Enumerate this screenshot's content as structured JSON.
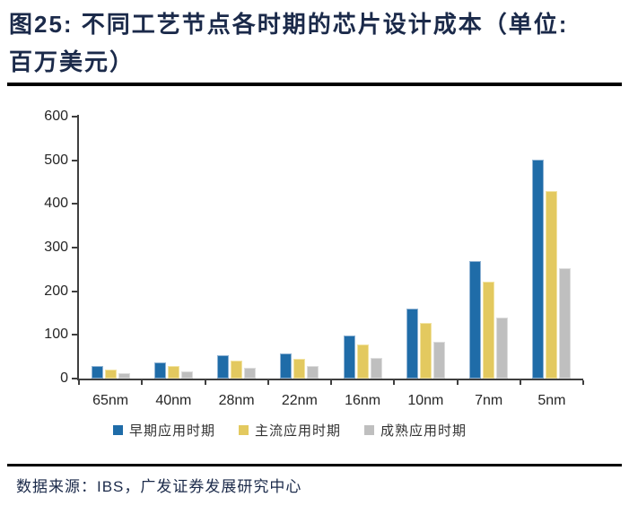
{
  "header": {
    "title": "图25:  不同工艺节点各时期的芯片设计成本（单位:\n百万美元）"
  },
  "chart_data": {
    "type": "bar",
    "title": "不同工艺节点各时期的芯片设计成本",
    "unit": "百万美元",
    "categories": [
      "65nm",
      "40nm",
      "28nm",
      "22nm",
      "16nm",
      "10nm",
      "7nm",
      "5nm"
    ],
    "series": [
      {
        "name": "早期应用时期",
        "key": "early",
        "color": "#1F6CA8",
        "edge": "#8FB3D4",
        "values": [
          28,
          37,
          53,
          57,
          98,
          161,
          270,
          501
        ]
      },
      {
        "name": "主流应用时期",
        "key": "mainstream",
        "color": "#E3C95F",
        "edge": "#F2E3A1",
        "values": [
          21,
          29,
          42,
          45,
          79,
          127,
          221,
          429
        ]
      },
      {
        "name": "成熟应用时期",
        "key": "mature",
        "color": "#BFBFBF",
        "edge": "#DCDCDC",
        "values": [
          12,
          17,
          25,
          29,
          48,
          84,
          140,
          252
        ]
      }
    ],
    "ylim": [
      0,
      600
    ],
    "y_ticks": [
      0,
      100,
      200,
      300,
      400,
      500,
      600
    ],
    "grid": false,
    "legend_position": "bottom",
    "axis_color": "#3f3f3f"
  },
  "footer": {
    "source": "数据来源：IBS，广发证券发展研究中心"
  }
}
